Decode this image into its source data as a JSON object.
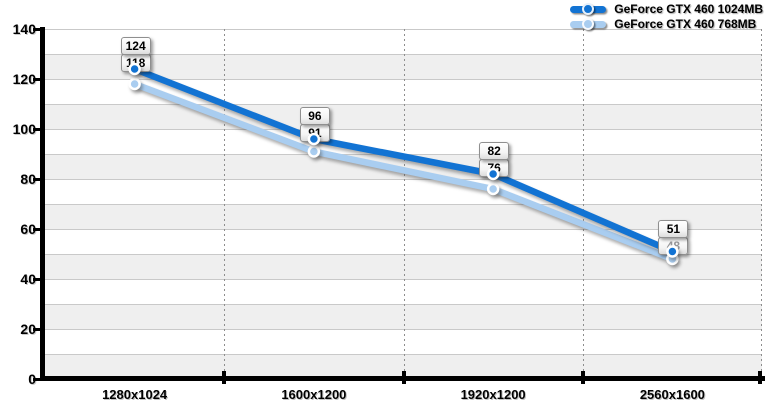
{
  "chart_data": {
    "type": "line",
    "categories": [
      "1280x1024",
      "1600x1200",
      "1920x1200",
      "2560x1600"
    ],
    "series": [
      {
        "name": "GeForce GTX 460 1024MB",
        "color": "#1273d3",
        "values": [
          124,
          96,
          82,
          51
        ]
      },
      {
        "name": "GeForce GTX 460 768MB",
        "color": "#a9cdf0",
        "values": [
          118,
          91,
          76,
          48
        ]
      }
    ],
    "title": "",
    "xlabel": "",
    "ylabel": "",
    "ylim": [
      0,
      140
    ],
    "yticks": [
      140,
      120,
      100,
      80,
      60,
      40,
      20,
      0
    ],
    "band_step": 10,
    "grid": "alternating horizontal bands, dotted vertical category separators",
    "legend_position": "top-right",
    "colors": {
      "band_gray": "#efefef",
      "grid_line": "#c9c9c9",
      "axis": "#000000",
      "label_box_border": "#8f8f8f"
    }
  }
}
